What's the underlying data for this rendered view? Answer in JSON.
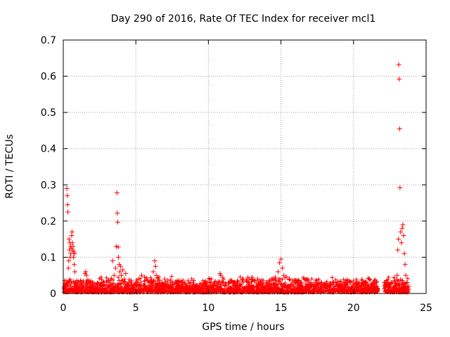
{
  "chart_data": {
    "type": "scatter",
    "title": "Day 290 of 2016, Rate Of TEC Index for receiver mcl1",
    "xlabel": "GPS time / hours",
    "ylabel": "ROTI / TECUs",
    "xlim": [
      0,
      25
    ],
    "ylim": [
      0,
      0.7
    ],
    "xticks": [
      "0",
      "5",
      "10",
      "15",
      "20",
      "25"
    ],
    "xtick_values": [
      0,
      5,
      10,
      15,
      20,
      25
    ],
    "yticks": [
      "0",
      "0.1",
      "0.2",
      "0.3",
      "0.4",
      "0.5",
      "0.6",
      "0.7"
    ],
    "ytick_values": [
      0,
      0.1,
      0.2,
      0.3,
      0.4,
      0.5,
      0.6,
      0.7
    ],
    "grid": true,
    "marker": "+",
    "color": "#ff0000",
    "series": [
      {
        "points": [
          [
            0.1,
            0.012
          ],
          [
            0.15,
            0.02
          ],
          [
            0.2,
            0.035
          ],
          [
            0.25,
            0.29
          ],
          [
            0.28,
            0.27
          ],
          [
            0.3,
            0.245
          ],
          [
            0.32,
            0.225
          ],
          [
            0.35,
            0.07
          ],
          [
            0.38,
            0.09
          ],
          [
            0.4,
            0.15
          ],
          [
            0.42,
            0.12
          ],
          [
            0.45,
            0.14
          ],
          [
            0.48,
            0.1
          ],
          [
            0.5,
            0.13
          ],
          [
            0.52,
            0.11
          ],
          [
            0.55,
            0.125
          ],
          [
            0.58,
            0.16
          ],
          [
            0.6,
            0.17
          ],
          [
            0.62,
            0.14
          ],
          [
            0.65,
            0.12
          ],
          [
            0.68,
            0.13
          ],
          [
            0.7,
            0.1
          ],
          [
            0.72,
            0.115
          ],
          [
            0.75,
            0.08
          ],
          [
            0.78,
            0.11
          ],
          [
            0.8,
            0.06
          ],
          [
            0.85,
            0.03
          ],
          [
            0.9,
            0.02
          ],
          [
            1.0,
            0.015
          ],
          [
            1.1,
            0.025
          ],
          [
            1.2,
            0.018
          ],
          [
            1.3,
            0.022
          ],
          [
            1.4,
            0.03
          ],
          [
            1.5,
            0.055
          ],
          [
            1.55,
            0.06
          ],
          [
            1.6,
            0.05
          ],
          [
            1.7,
            0.03
          ],
          [
            1.8,
            0.02
          ],
          [
            1.9,
            0.025
          ],
          [
            2.0,
            0.03
          ],
          [
            2.2,
            0.02
          ],
          [
            2.4,
            0.028
          ],
          [
            2.6,
            0.022
          ],
          [
            2.8,
            0.03
          ],
          [
            3.0,
            0.025
          ],
          [
            3.1,
            0.035
          ],
          [
            3.2,
            0.03
          ],
          [
            3.3,
            0.04
          ],
          [
            3.4,
            0.09
          ],
          [
            3.5,
            0.05
          ],
          [
            3.6,
            0.07
          ],
          [
            3.65,
            0.13
          ],
          [
            3.7,
            0.278
          ],
          [
            3.72,
            0.222
          ],
          [
            3.75,
            0.197
          ],
          [
            3.78,
            0.128
          ],
          [
            3.8,
            0.1
          ],
          [
            3.85,
            0.08
          ],
          [
            3.9,
            0.06
          ],
          [
            3.95,
            0.075
          ],
          [
            4.0,
            0.05
          ],
          [
            4.1,
            0.065
          ],
          [
            4.2,
            0.04
          ],
          [
            4.3,
            0.055
          ],
          [
            4.5,
            0.03
          ],
          [
            4.7,
            0.035
          ],
          [
            4.9,
            0.025
          ],
          [
            5.0,
            0.03
          ],
          [
            5.2,
            0.04
          ],
          [
            5.4,
            0.05
          ],
          [
            5.6,
            0.045
          ],
          [
            5.8,
            0.035
          ],
          [
            6.0,
            0.03
          ],
          [
            6.2,
            0.06
          ],
          [
            6.3,
            0.09
          ],
          [
            6.35,
            0.075
          ],
          [
            6.4,
            0.05
          ],
          [
            6.6,
            0.035
          ],
          [
            6.8,
            0.03
          ],
          [
            7.0,
            0.04
          ],
          [
            7.2,
            0.035
          ],
          [
            7.4,
            0.03
          ],
          [
            7.6,
            0.025
          ],
          [
            7.8,
            0.03
          ],
          [
            8.0,
            0.035
          ],
          [
            8.2,
            0.03
          ],
          [
            8.4,
            0.025
          ],
          [
            8.6,
            0.035
          ],
          [
            8.8,
            0.03
          ],
          [
            9.0,
            0.025
          ],
          [
            9.2,
            0.02
          ],
          [
            9.4,
            0.018
          ],
          [
            9.6,
            0.022
          ],
          [
            9.8,
            0.02
          ],
          [
            10.0,
            0.018
          ],
          [
            10.2,
            0.02
          ],
          [
            10.4,
            0.022
          ],
          [
            10.6,
            0.025
          ],
          [
            10.8,
            0.055
          ],
          [
            10.85,
            0.05
          ],
          [
            11.0,
            0.03
          ],
          [
            11.2,
            0.025
          ],
          [
            11.4,
            0.03
          ],
          [
            11.6,
            0.035
          ],
          [
            11.8,
            0.03
          ],
          [
            12.0,
            0.035
          ],
          [
            12.2,
            0.045
          ],
          [
            12.4,
            0.04
          ],
          [
            12.6,
            0.035
          ],
          [
            12.8,
            0.04
          ],
          [
            13.0,
            0.045
          ],
          [
            13.2,
            0.035
          ],
          [
            13.4,
            0.04
          ],
          [
            13.6,
            0.03
          ],
          [
            13.8,
            0.035
          ],
          [
            14.0,
            0.03
          ],
          [
            14.2,
            0.035
          ],
          [
            14.4,
            0.04
          ],
          [
            14.6,
            0.045
          ],
          [
            14.8,
            0.06
          ],
          [
            14.9,
            0.085
          ],
          [
            15.0,
            0.095
          ],
          [
            15.1,
            0.07
          ],
          [
            15.2,
            0.05
          ],
          [
            15.4,
            0.045
          ],
          [
            15.6,
            0.04
          ],
          [
            15.8,
            0.035
          ],
          [
            16.0,
            0.03
          ],
          [
            16.2,
            0.035
          ],
          [
            16.4,
            0.03
          ],
          [
            16.6,
            0.04
          ],
          [
            16.8,
            0.035
          ],
          [
            17.0,
            0.03
          ],
          [
            17.2,
            0.025
          ],
          [
            17.4,
            0.03
          ],
          [
            17.6,
            0.025
          ],
          [
            17.8,
            0.03
          ],
          [
            18.0,
            0.025
          ],
          [
            18.2,
            0.02
          ],
          [
            18.4,
            0.025
          ],
          [
            18.6,
            0.03
          ],
          [
            18.8,
            0.025
          ],
          [
            19.0,
            0.02
          ],
          [
            19.2,
            0.025
          ],
          [
            19.4,
            0.03
          ],
          [
            19.6,
            0.025
          ],
          [
            19.8,
            0.03
          ],
          [
            20.0,
            0.035
          ],
          [
            20.2,
            0.03
          ],
          [
            20.4,
            0.025
          ],
          [
            20.6,
            0.035
          ],
          [
            20.8,
            0.03
          ],
          [
            21.0,
            0.025
          ],
          [
            21.2,
            0.02
          ],
          [
            21.4,
            0.025
          ],
          [
            21.6,
            0.02
          ],
          [
            22.2,
            0.03
          ],
          [
            22.4,
            0.025
          ],
          [
            22.6,
            0.03
          ],
          [
            22.8,
            0.035
          ],
          [
            23.0,
            0.05
          ],
          [
            23.05,
            0.12
          ],
          [
            23.1,
            0.15
          ],
          [
            23.12,
            0.632
          ],
          [
            23.15,
            0.592
          ],
          [
            23.18,
            0.455
          ],
          [
            23.2,
            0.292
          ],
          [
            23.25,
            0.17
          ],
          [
            23.3,
            0.14
          ],
          [
            23.35,
            0.18
          ],
          [
            23.4,
            0.19
          ],
          [
            23.45,
            0.16
          ],
          [
            23.5,
            0.11
          ],
          [
            23.55,
            0.08
          ],
          [
            23.6,
            0.05
          ],
          [
            23.7,
            0.03
          ],
          [
            23.8,
            0.02
          ]
        ]
      }
    ]
  }
}
